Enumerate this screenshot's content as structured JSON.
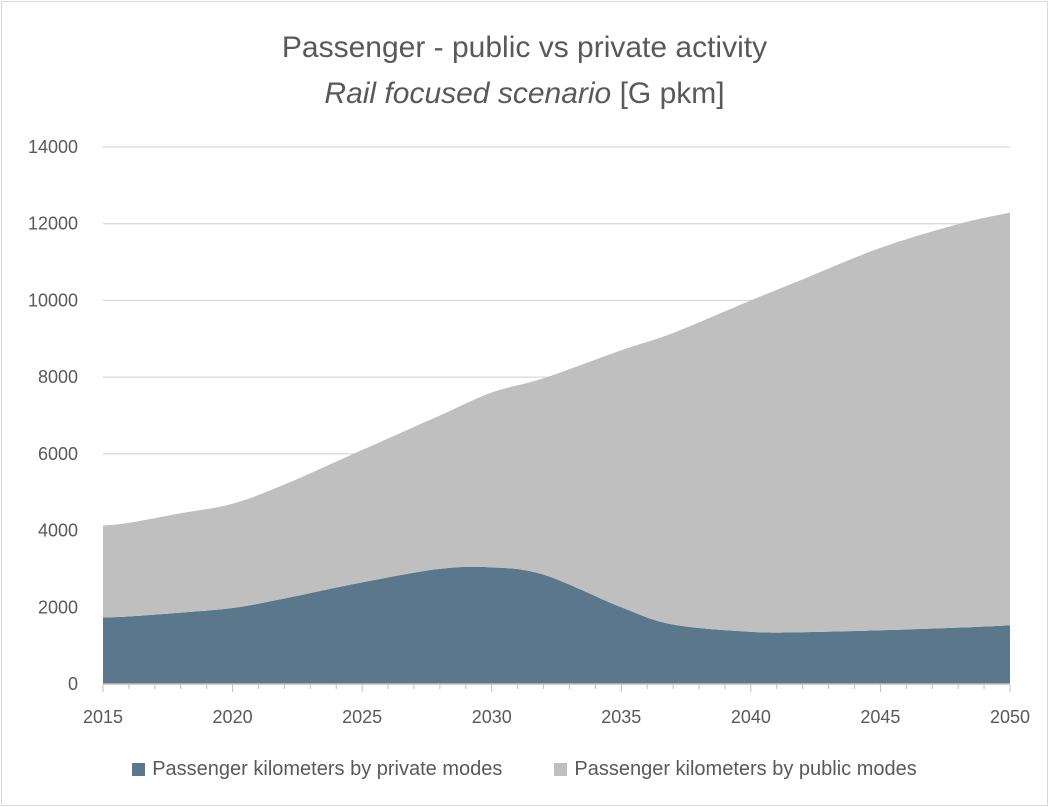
{
  "chart_data": {
    "type": "area",
    "stacked": true,
    "title": "Passenger - public vs private activity",
    "subtitle_italic": "Rail focused scenario",
    "subtitle_unit": "[G pkm]",
    "x_ticks": [
      "2015",
      "2020",
      "2025",
      "2030",
      "2035",
      "2040",
      "2045",
      "2050"
    ],
    "y_ticks": [
      "0",
      "2000",
      "4000",
      "6000",
      "8000",
      "10000",
      "12000",
      "14000"
    ],
    "xlim": [
      2015,
      2050
    ],
    "ylim": [
      0,
      14000
    ],
    "grid": "horizontal",
    "legend_position": "bottom",
    "x": [
      2015,
      2016,
      2018,
      2020,
      2022,
      2025,
      2028,
      2030,
      2032,
      2035,
      2037,
      2040,
      2042,
      2045,
      2048,
      2050
    ],
    "series": [
      {
        "name": "Passenger kilometers by private modes",
        "color": "#5b778b",
        "values": [
          1730,
          1760,
          1860,
          1980,
          2230,
          2650,
          3000,
          3040,
          2850,
          2000,
          1550,
          1360,
          1350,
          1400,
          1470,
          1530
        ]
      },
      {
        "name": "Passenger kilometers by public modes",
        "color": "#bfbfbf",
        "values": [
          2400,
          2440,
          2590,
          2720,
          2970,
          3450,
          4000,
          4560,
          5120,
          6700,
          7600,
          8640,
          9200,
          9970,
          10520,
          10760
        ]
      }
    ]
  }
}
